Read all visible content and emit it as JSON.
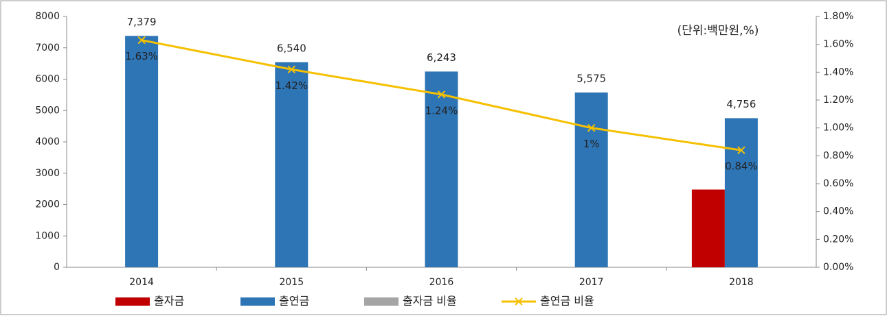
{
  "chart_data": {
    "type": "bar",
    "annotation": "(단위:백만원,%)",
    "categories": [
      "2014",
      "2015",
      "2016",
      "2017",
      "2018"
    ],
    "ylim": [
      0,
      8000
    ],
    "yticks": [
      0,
      1000,
      2000,
      3000,
      4000,
      5000,
      6000,
      7000,
      8000
    ],
    "y2lim": [
      0,
      1.8
    ],
    "y2ticks": [
      {
        "value": 0,
        "label": "0.00%"
      },
      {
        "value": 0.2,
        "label": "0.20%"
      },
      {
        "value": 0.4,
        "label": "0.40%"
      },
      {
        "value": 0.6,
        "label": "0.60%"
      },
      {
        "value": 0.8,
        "label": "0.80%"
      },
      {
        "value": 1.0,
        "label": "1.00%"
      },
      {
        "value": 1.2,
        "label": "1.20%"
      },
      {
        "value": 1.4,
        "label": "1.40%"
      },
      {
        "value": 1.6,
        "label": "1.60%"
      },
      {
        "value": 1.8,
        "label": "1.80%"
      }
    ],
    "legend": "bottom",
    "series": [
      {
        "name": "출자금",
        "color": "#c00000",
        "values": [
          null,
          null,
          null,
          null,
          2480
        ]
      },
      {
        "name": "출연금",
        "color": "#2e75b6",
        "values": [
          7379,
          6540,
          6243,
          5575,
          4756
        ],
        "value_labels": [
          "7,379",
          "6,540",
          "6,243",
          "5,575",
          "4,756"
        ]
      },
      {
        "name": "출자금 비율",
        "color": "#a5a5a5",
        "values": [
          null,
          null,
          null,
          null,
          null
        ]
      },
      {
        "name": "출연금 비율",
        "color": "#f5c000",
        "type": "line",
        "axis": "y2",
        "values": [
          1.63,
          1.42,
          1.24,
          1,
          0.84
        ],
        "value_labels": [
          "1.63%",
          "1.42%",
          "1.24%",
          "1%",
          "0.84%"
        ]
      }
    ]
  }
}
